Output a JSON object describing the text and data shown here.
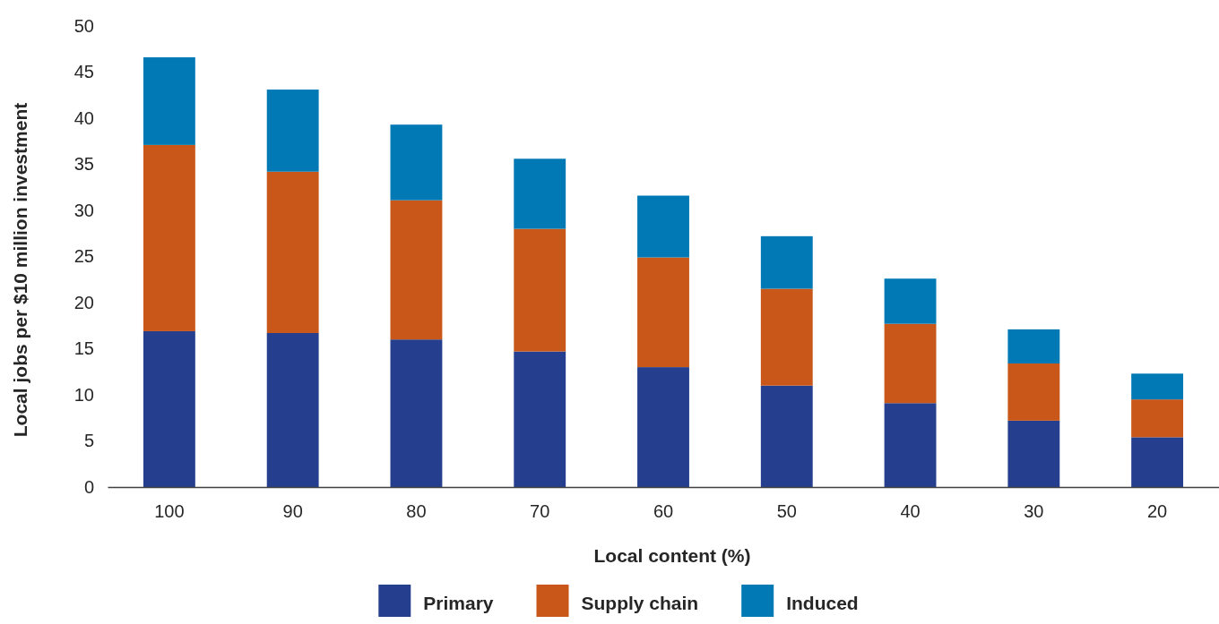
{
  "chart_data": {
    "type": "bar",
    "stacked": true,
    "xlabel": "Local content (%)",
    "ylabel": "Local jobs per $10 million investment",
    "categories": [
      "100",
      "90",
      "80",
      "70",
      "60",
      "50",
      "40",
      "30",
      "20"
    ],
    "series": [
      {
        "name": "Primary",
        "color": "#253f8e",
        "values": [
          16.9,
          16.7,
          16.0,
          14.7,
          13.0,
          11.0,
          9.1,
          7.2,
          5.4
        ]
      },
      {
        "name": "Supply chain",
        "color": "#c9571a",
        "values": [
          20.2,
          17.5,
          15.1,
          13.3,
          11.9,
          10.5,
          8.6,
          6.2,
          4.1
        ]
      },
      {
        "name": "Induced",
        "color": "#0079b4",
        "values": [
          9.5,
          8.9,
          8.2,
          7.6,
          6.7,
          5.7,
          4.9,
          3.7,
          2.8
        ]
      }
    ],
    "ylim": [
      0,
      50
    ],
    "yticks": [
      0,
      5,
      10,
      15,
      20,
      25,
      30,
      35,
      40,
      45,
      50
    ],
    "grid": false,
    "legend": "bottom"
  }
}
